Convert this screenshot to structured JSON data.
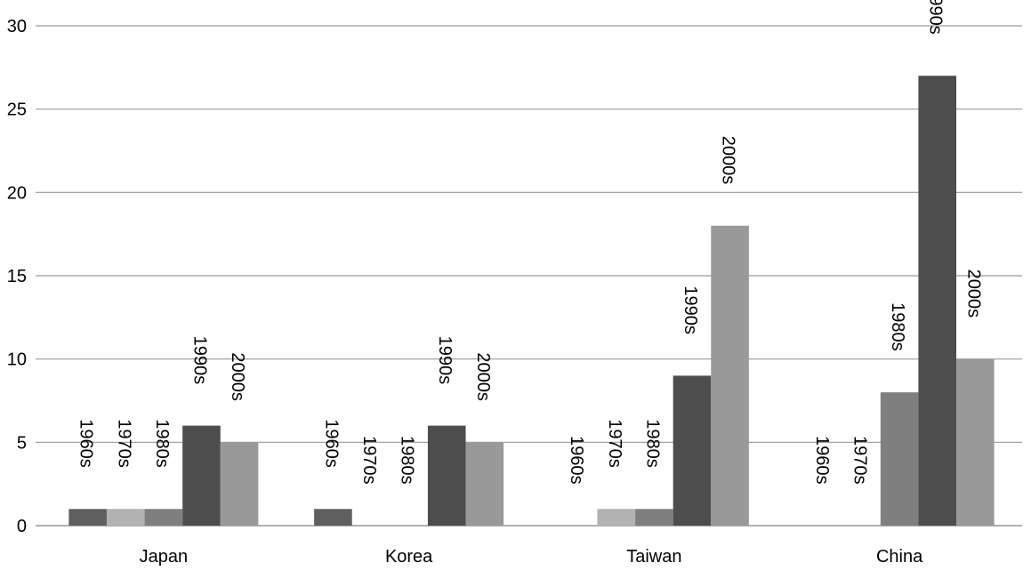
{
  "chart_data": {
    "type": "bar",
    "categories": [
      "Japan",
      "Korea",
      "Taiwan",
      "China"
    ],
    "series": [
      {
        "name": "1960s",
        "values": [
          1,
          1,
          0,
          0
        ],
        "color": "#5f5f5f"
      },
      {
        "name": "1970s",
        "values": [
          1,
          0,
          1,
          0
        ],
        "color": "#b2b2b2"
      },
      {
        "name": "1980s",
        "values": [
          1,
          0,
          1,
          8
        ],
        "color": "#7f7f7f"
      },
      {
        "name": "1990s",
        "values": [
          6,
          6,
          9,
          27
        ],
        "color": "#4d4d4d"
      },
      {
        "name": "2000s",
        "values": [
          5,
          5,
          18,
          10
        ],
        "color": "#999999"
      }
    ],
    "ylim": [
      0,
      30
    ],
    "yticks": [
      "0",
      "5",
      "10",
      "15",
      "20",
      "25",
      "30"
    ],
    "grid": true,
    "legend": "none",
    "data_labels": "series name"
  }
}
